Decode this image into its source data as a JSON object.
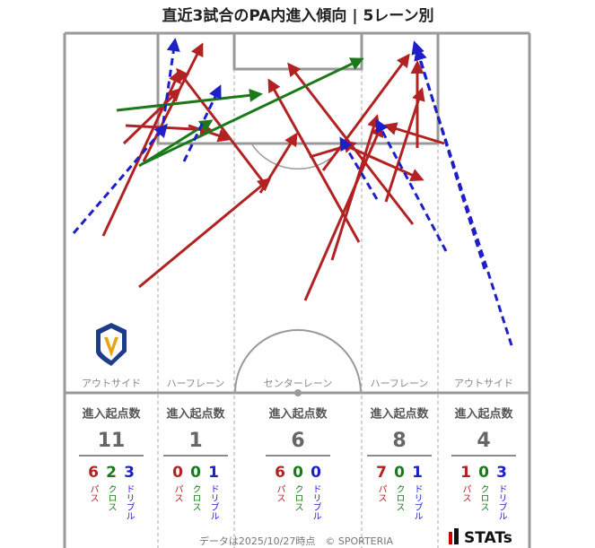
{
  "title": "直近3試合のPA内進入傾向 | 5レーン別",
  "lanes": [
    {
      "name": "アウトサイド",
      "heading": "進入起点数",
      "total": 11,
      "pass": 6,
      "cross": 2,
      "dribble": 3,
      "pass_label": "パス",
      "cross_label": "クロス",
      "dribble_label": "ドリブル"
    },
    {
      "name": "ハーフレーン",
      "heading": "進入起点数",
      "total": 1,
      "pass": 0,
      "cross": 0,
      "dribble": 1,
      "pass_label": "パス",
      "cross_label": "クロス",
      "dribble_label": "ドリブル"
    },
    {
      "name": "センターレーン",
      "heading": "進入起点数",
      "total": 6,
      "pass": 6,
      "cross": 0,
      "dribble": 0,
      "pass_label": "パス",
      "cross_label": "クロス",
      "dribble_label": "ドリブル"
    },
    {
      "name": "ハーフレーン",
      "heading": "進入起点数",
      "total": 8,
      "pass": 7,
      "cross": 0,
      "dribble": 1,
      "pass_label": "パス",
      "cross_label": "クロス",
      "dribble_label": "ドリブル"
    },
    {
      "name": "アウトサイド",
      "heading": "進入起点数",
      "total": 4,
      "pass": 1,
      "cross": 0,
      "dribble": 3,
      "pass_label": "パス",
      "cross_label": "クロス",
      "dribble_label": "ドリブル"
    }
  ],
  "footer": "データは2025/10/27時点　© SPORTERIA",
  "logo": "STATs"
}
